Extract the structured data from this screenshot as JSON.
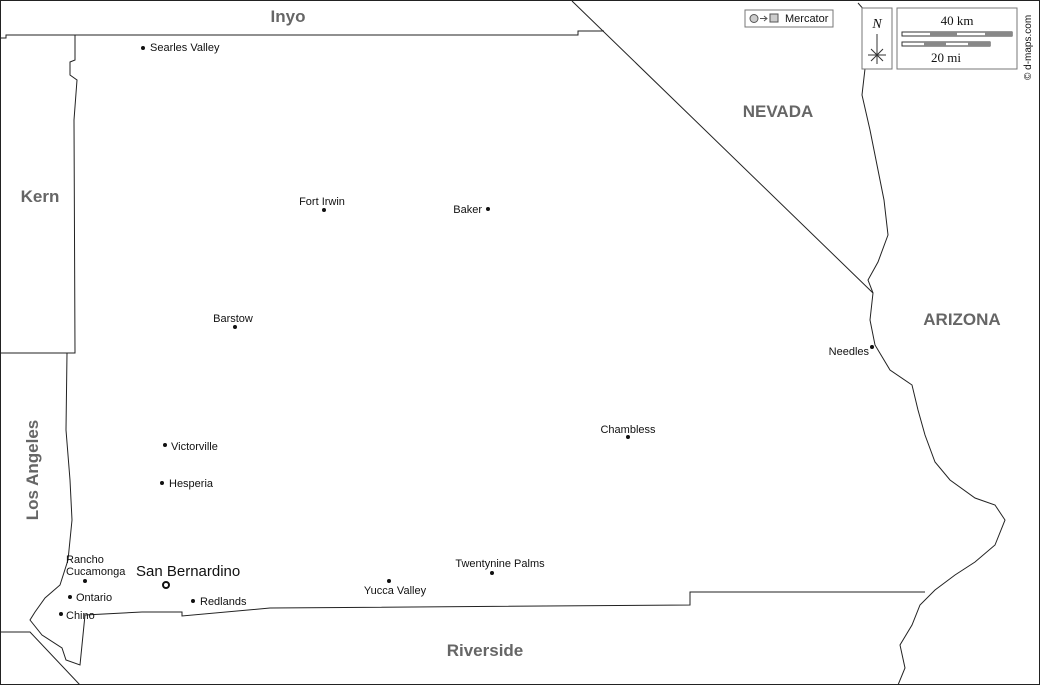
{
  "map": {
    "regions": [
      "Inyo",
      "Kern",
      "Los Angeles",
      "NEVADA",
      "ARIZONA",
      "Riverside"
    ],
    "capital": "San Bernardino",
    "cities": [
      "Searles Valley",
      "Fort Irwin",
      "Baker",
      "Barstow",
      "Needles",
      "Chambless",
      "Victorville",
      "Hesperia",
      "Rancho Cucamonga",
      "Ontario",
      "Chino",
      "Redlands",
      "Yucca Valley",
      "Twentynine Palms"
    ],
    "projection": "Mercator",
    "north": "N",
    "scale": [
      "40 km",
      "20 mi"
    ],
    "credit": "© d-maps.com"
  }
}
